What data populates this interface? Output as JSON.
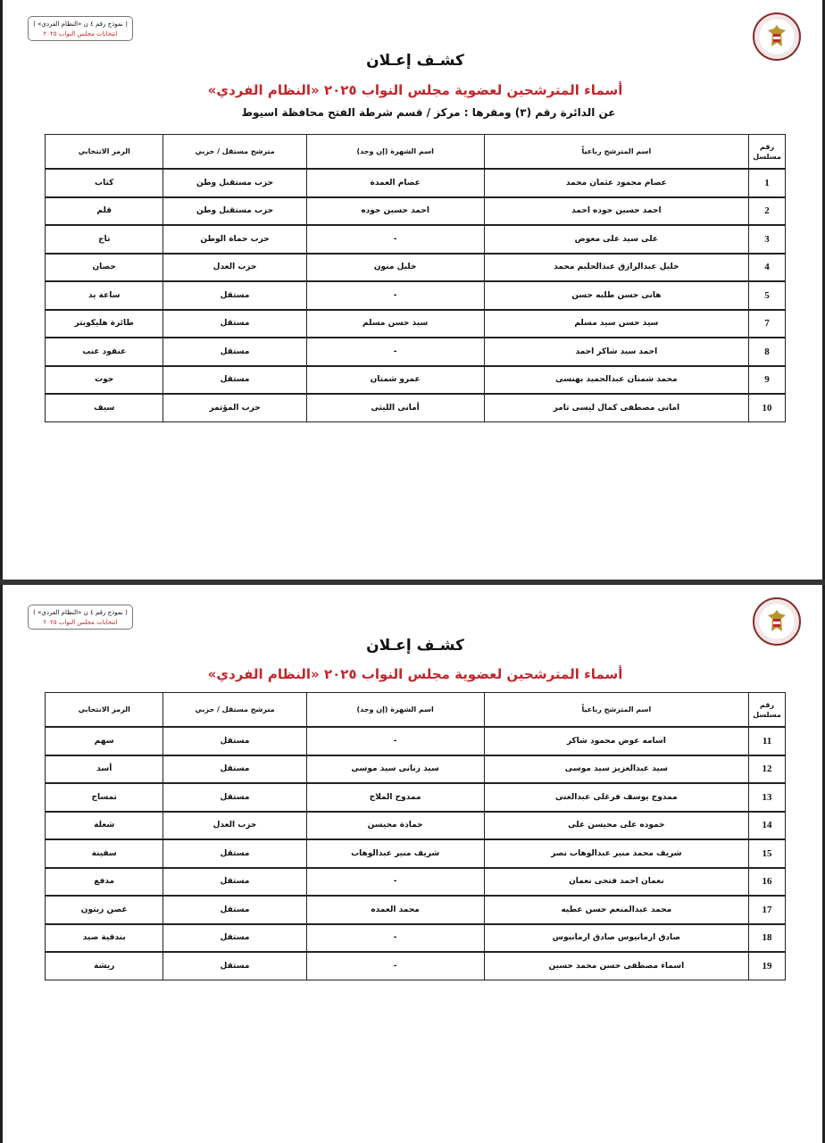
{
  "form_label": {
    "line1": "( نموذج رقم ٤ ن «النظام الفردي» )",
    "line2": "انتخابات مجلس النواب ٢٠٢٥"
  },
  "colors": {
    "accent_red": "#c0282d"
  },
  "columns": [
    "رقم مسلسل",
    "اسم المترشح رباعياً",
    "اسم الشهرة (إن وجد)",
    "مترشح مستقل / حزبي",
    "الرمز الانتخابي"
  ],
  "pages": [
    {
      "title": "كشـف إعـلان",
      "subtitle": "أسماء المترشحين لعضوية مجلس النواب ٢٠٢٥ «النظام الفردي»",
      "district": "عن الدائرة رقم  (٣)   ومقرها : مركز / قسم شرطة  الفتح   محافظة  اسيوط",
      "rows": [
        [
          "1",
          "عصام محمود عثمان محمد",
          "عصام العمدة",
          "حزب مستقبل وطن",
          "كتاب"
        ],
        [
          "2",
          "احمد حسين جوده احمد",
          "احمد حسين جوده",
          "حزب مستقبل وطن",
          "قلم"
        ],
        [
          "3",
          "على سيد على معوض",
          "-",
          "حزب حماة الوطن",
          "تاج"
        ],
        [
          "4",
          "خليل عبدالرازق عبدالحليم محمد",
          "خليل منون",
          "حزب العدل",
          "حصان"
        ],
        [
          "5",
          "هانى حسن طلبه حسن",
          "-",
          "مستقل",
          "ساعة يد"
        ],
        [
          "7",
          "سيد حسن سيد مسلم",
          "سيد حسن مسلم",
          "مستقل",
          "طائرة هليكوبتر"
        ],
        [
          "8",
          "احمد سيد شاكر احمد",
          "-",
          "مستقل",
          "عنقود عنب"
        ],
        [
          "9",
          "محمد شمتان عبدالحميد بهنسى",
          "عمرو شمتان",
          "مستقل",
          "حوت"
        ],
        [
          "10",
          "امانى مصطفى كمال ليسى تامر",
          "أمانى الليثى",
          "حزب المؤتمر",
          "سيف"
        ]
      ]
    },
    {
      "title": "كشـف إعـلان",
      "subtitle": "أسماء المترشحين لعضوية مجلس النواب ٢٠٢٥ «النظام الفردي»",
      "rows": [
        [
          "11",
          "اسامه عوض محمود شاكر",
          "-",
          "مستقل",
          "سهم"
        ],
        [
          "12",
          "سيد عبدالعزيز سيد موسى",
          "سيد زنانى سيد موسى",
          "مستقل",
          "أسد"
        ],
        [
          "13",
          "ممدوح يوسف فرغلى عبدالغنى",
          "ممدوح الملاخ",
          "مستقل",
          "تمساح"
        ],
        [
          "14",
          "حموده على محيسن على",
          "حمادة محيسن",
          "حزب العدل",
          "شعلة"
        ],
        [
          "15",
          "شريف محمد منير عبدالوهاب نصر",
          "شريف منير عبدالوهاب",
          "مستقل",
          "سفينة"
        ],
        [
          "16",
          "نعمان احمد فتحى نعمان",
          "-",
          "مستقل",
          "مدفع"
        ],
        [
          "17",
          "محمد عبدالمنعم حسن عطيه",
          "محمد العمده",
          "مستقل",
          "غصن زيتون"
        ],
        [
          "18",
          "صادق ارمانيوس صادق ارمانيوس",
          "-",
          "مستقل",
          "بندقية صيد"
        ],
        [
          "19",
          "اسماء مصطفى حسن محمد حسين",
          "-",
          "مستقل",
          "ريشة"
        ]
      ]
    }
  ]
}
